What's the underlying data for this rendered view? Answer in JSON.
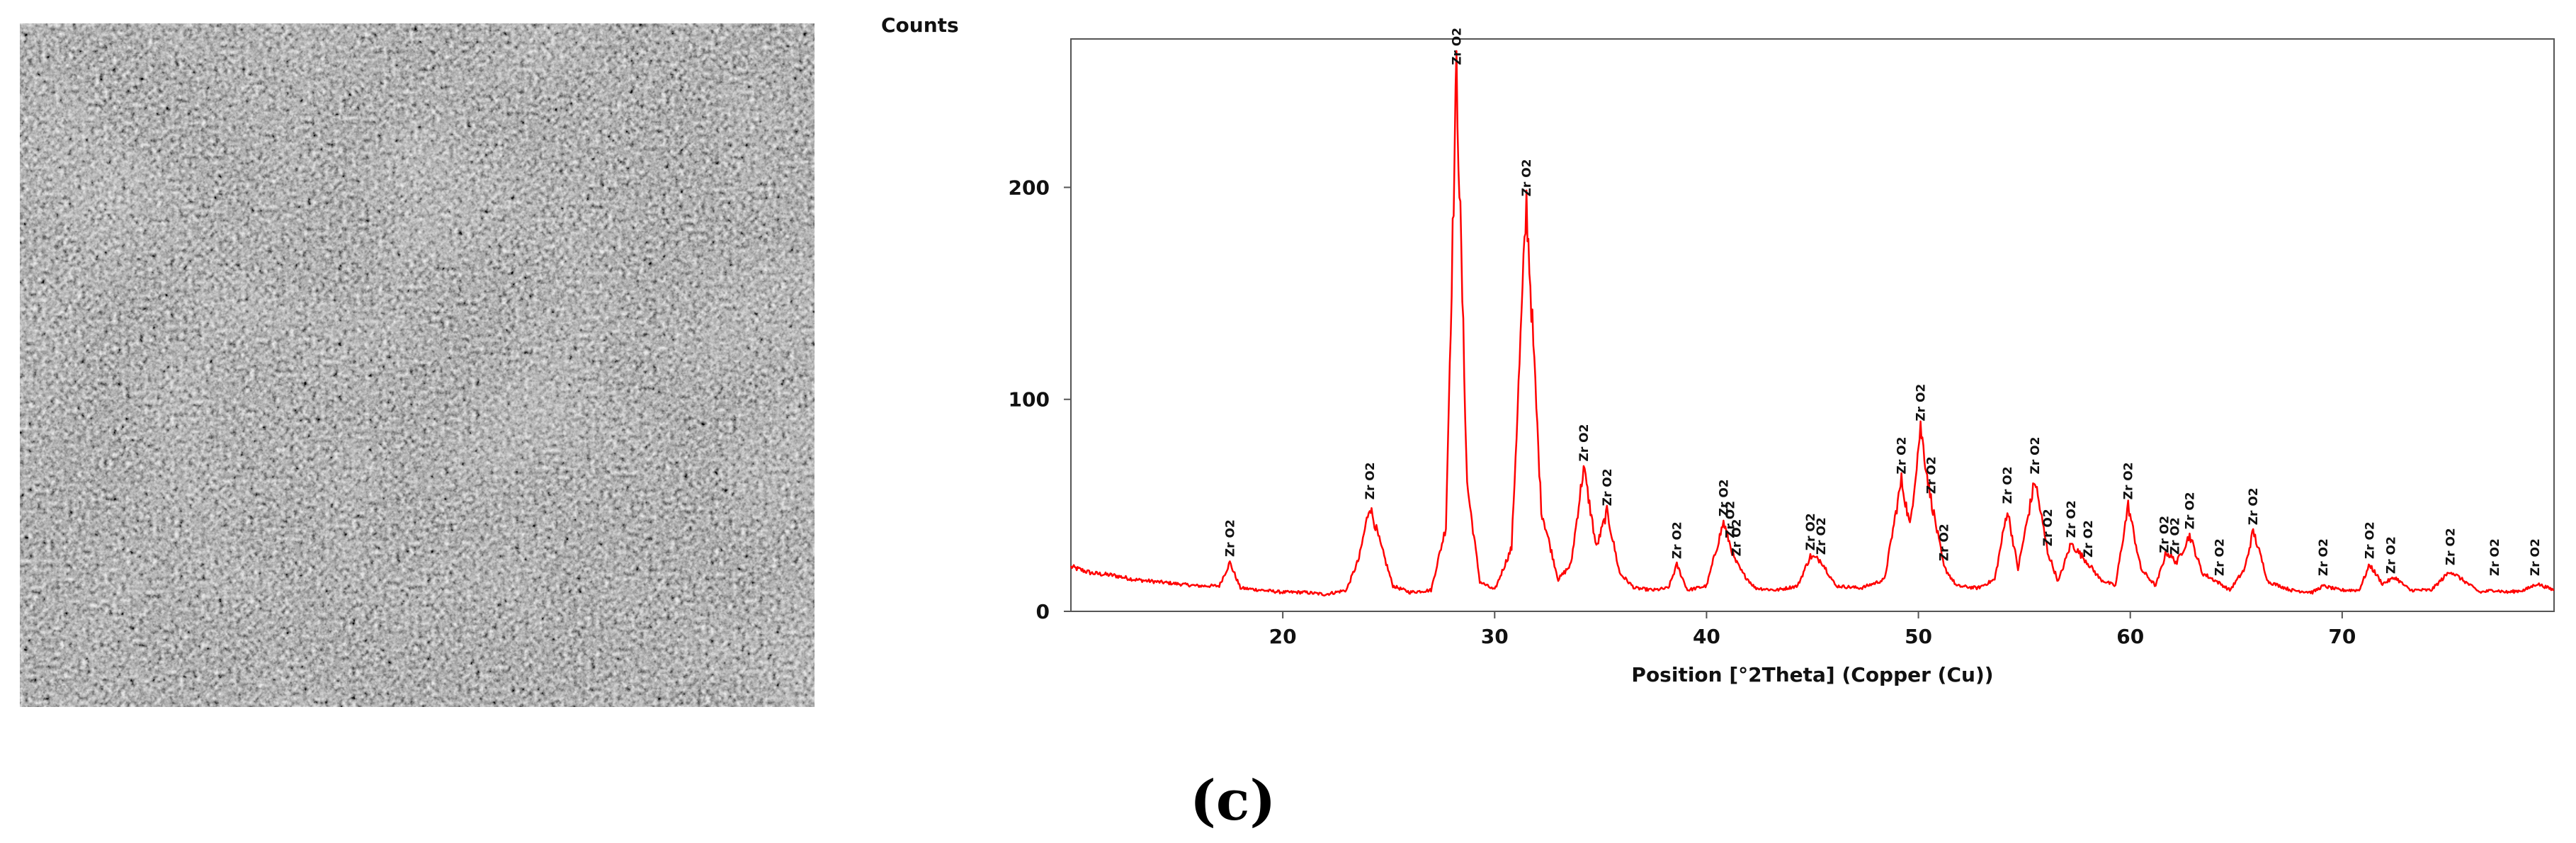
{
  "caption": "(c)",
  "chart_data": {
    "type": "line",
    "ylabel": "Counts",
    "xlabel": "Position [°2Theta] (Copper (Cu))",
    "xlim": [
      10,
      80
    ],
    "ylim": [
      0,
      270
    ],
    "xticks": [
      20,
      30,
      40,
      50,
      60,
      70
    ],
    "yticks": [
      0,
      100,
      200
    ],
    "grid": false,
    "line_color": "#ff0000",
    "peak_label": "Zr O2",
    "series": [
      {
        "x": [
          10,
          11,
          12,
          13,
          14,
          15,
          16,
          17,
          17.5,
          18,
          19,
          20,
          21,
          22,
          23,
          23.6,
          24.1,
          24.6,
          25.2,
          26,
          27,
          27.7,
          28.2,
          28.7,
          29.3,
          30,
          30.8,
          31.5,
          32.2,
          33,
          33.6,
          34.2,
          34.8,
          35.3,
          35.9,
          36.6,
          37.5,
          38.2,
          38.6,
          39.1,
          40,
          40.8,
          41.3,
          41.7,
          42.3,
          43.3,
          44.3,
          44.9,
          45.4,
          46.1,
          47.3,
          48.4,
          49.2,
          49.6,
          50.1,
          50.5,
          51.2,
          51.8,
          52.8,
          53.6,
          54.2,
          54.7,
          55.5,
          56.1,
          56.6,
          57.2,
          57.9,
          58.6,
          59.3,
          59.9,
          60.5,
          61.2,
          61.7,
          62.2,
          62.8,
          63.4,
          64.1,
          64.7,
          65.4,
          65.8,
          66.5,
          67.6,
          68.6,
          69.1,
          69.9,
          70.8,
          71.3,
          71.9,
          72.5,
          73.2,
          74.2,
          75.1,
          75.8,
          76.5,
          77.2,
          77.8,
          78.6,
          79.2,
          80
        ],
        "y": [
          21,
          18,
          17,
          15,
          14,
          13,
          12,
          12,
          23,
          11,
          10,
          9,
          9,
          8,
          10,
          25,
          50,
          32,
          12,
          9,
          10,
          40,
          255,
          60,
          14,
          10,
          30,
          193,
          48,
          15,
          22,
          68,
          30,
          47,
          18,
          11,
          10,
          11,
          22,
          10,
          12,
          42,
          25,
          18,
          11,
          10,
          12,
          26,
          24,
          12,
          11,
          15,
          62,
          40,
          87,
          58,
          21,
          12,
          11,
          15,
          48,
          20,
          62,
          28,
          14,
          32,
          24,
          15,
          12,
          50,
          20,
          12,
          28,
          23,
          36,
          18,
          14,
          10,
          20,
          38,
          14,
          10,
          9,
          12,
          10,
          10,
          22,
          13,
          16,
          10,
          10,
          19,
          14,
          9,
          10,
          9,
          10,
          13,
          10
        ]
      }
    ],
    "peak_positions": [
      17.5,
      24.1,
      28.2,
      31.5,
      34.2,
      35.3,
      38.6,
      40.8,
      41.1,
      41.4,
      44.9,
      45.4,
      49.2,
      50.1,
      50.6,
      51.2,
      54.2,
      55.5,
      56.1,
      57.2,
      58.0,
      59.9,
      61.6,
      62.1,
      62.8,
      64.2,
      65.8,
      69.1,
      71.3,
      72.3,
      75.1,
      77.2,
      79.1
    ]
  }
}
